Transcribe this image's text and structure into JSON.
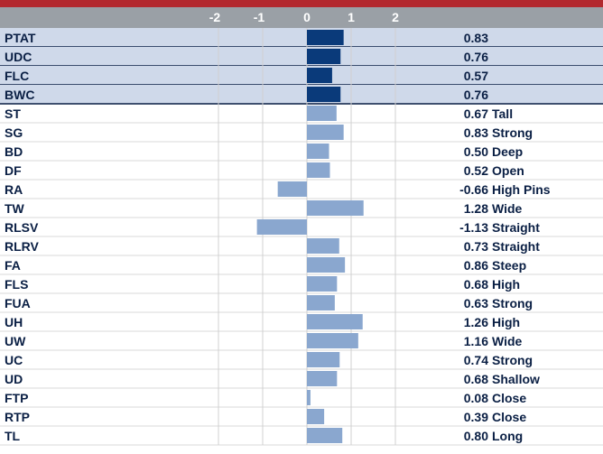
{
  "chart_data": {
    "type": "bar",
    "orientation": "horizontal",
    "xlim": [
      -3,
      2.6
    ],
    "ticks": [
      "-2",
      "-1",
      "0",
      "1",
      "2"
    ],
    "colors": {
      "header": "#9aa0a6",
      "topbar": "#b3282e",
      "highlight_row": "#cfd9ea",
      "highlight_bar": "#0a3a7a",
      "bar": "#8aa7cf",
      "text": "#0a1f44"
    },
    "rows": [
      {
        "label": "PTAT",
        "value": 0.83,
        "value_text": "0.83",
        "desc": "",
        "highlight": true
      },
      {
        "label": "UDC",
        "value": 0.76,
        "value_text": "0.76",
        "desc": "",
        "highlight": true
      },
      {
        "label": "FLC",
        "value": 0.57,
        "value_text": "0.57",
        "desc": "",
        "highlight": true
      },
      {
        "label": "BWC",
        "value": 0.76,
        "value_text": "0.76",
        "desc": "",
        "highlight": true
      },
      {
        "label": "ST",
        "value": 0.67,
        "value_text": "0.67",
        "desc": "Tall",
        "highlight": false
      },
      {
        "label": "SG",
        "value": 0.83,
        "value_text": "0.83",
        "desc": "Strong",
        "highlight": false
      },
      {
        "label": "BD",
        "value": 0.5,
        "value_text": "0.50",
        "desc": "Deep",
        "highlight": false
      },
      {
        "label": "DF",
        "value": 0.52,
        "value_text": "0.52",
        "desc": "Open",
        "highlight": false
      },
      {
        "label": "RA",
        "value": -0.66,
        "value_text": "-0.66",
        "desc": "High Pins",
        "highlight": false
      },
      {
        "label": "TW",
        "value": 1.28,
        "value_text": "1.28",
        "desc": "Wide",
        "highlight": false
      },
      {
        "label": "RLSV",
        "value": -1.13,
        "value_text": "-1.13",
        "desc": "Straight",
        "highlight": false
      },
      {
        "label": "RLRV",
        "value": 0.73,
        "value_text": "0.73",
        "desc": "Straight",
        "highlight": false
      },
      {
        "label": "FA",
        "value": 0.86,
        "value_text": "0.86",
        "desc": "Steep",
        "highlight": false
      },
      {
        "label": "FLS",
        "value": 0.68,
        "value_text": "0.68",
        "desc": "High",
        "highlight": false
      },
      {
        "label": "FUA",
        "value": 0.63,
        "value_text": "0.63",
        "desc": "Strong",
        "highlight": false
      },
      {
        "label": "UH",
        "value": 1.26,
        "value_text": "1.26",
        "desc": "High",
        "highlight": false
      },
      {
        "label": "UW",
        "value": 1.16,
        "value_text": "1.16",
        "desc": "Wide",
        "highlight": false
      },
      {
        "label": "UC",
        "value": 0.74,
        "value_text": "0.74",
        "desc": "Strong",
        "highlight": false
      },
      {
        "label": "UD",
        "value": 0.68,
        "value_text": "0.68",
        "desc": "Shallow",
        "highlight": false
      },
      {
        "label": "FTP",
        "value": 0.08,
        "value_text": "0.08",
        "desc": "Close",
        "highlight": false
      },
      {
        "label": "RTP",
        "value": 0.39,
        "value_text": "0.39",
        "desc": "Close",
        "highlight": false
      },
      {
        "label": "TL",
        "value": 0.8,
        "value_text": "0.80",
        "desc": "Long",
        "highlight": false
      }
    ]
  }
}
